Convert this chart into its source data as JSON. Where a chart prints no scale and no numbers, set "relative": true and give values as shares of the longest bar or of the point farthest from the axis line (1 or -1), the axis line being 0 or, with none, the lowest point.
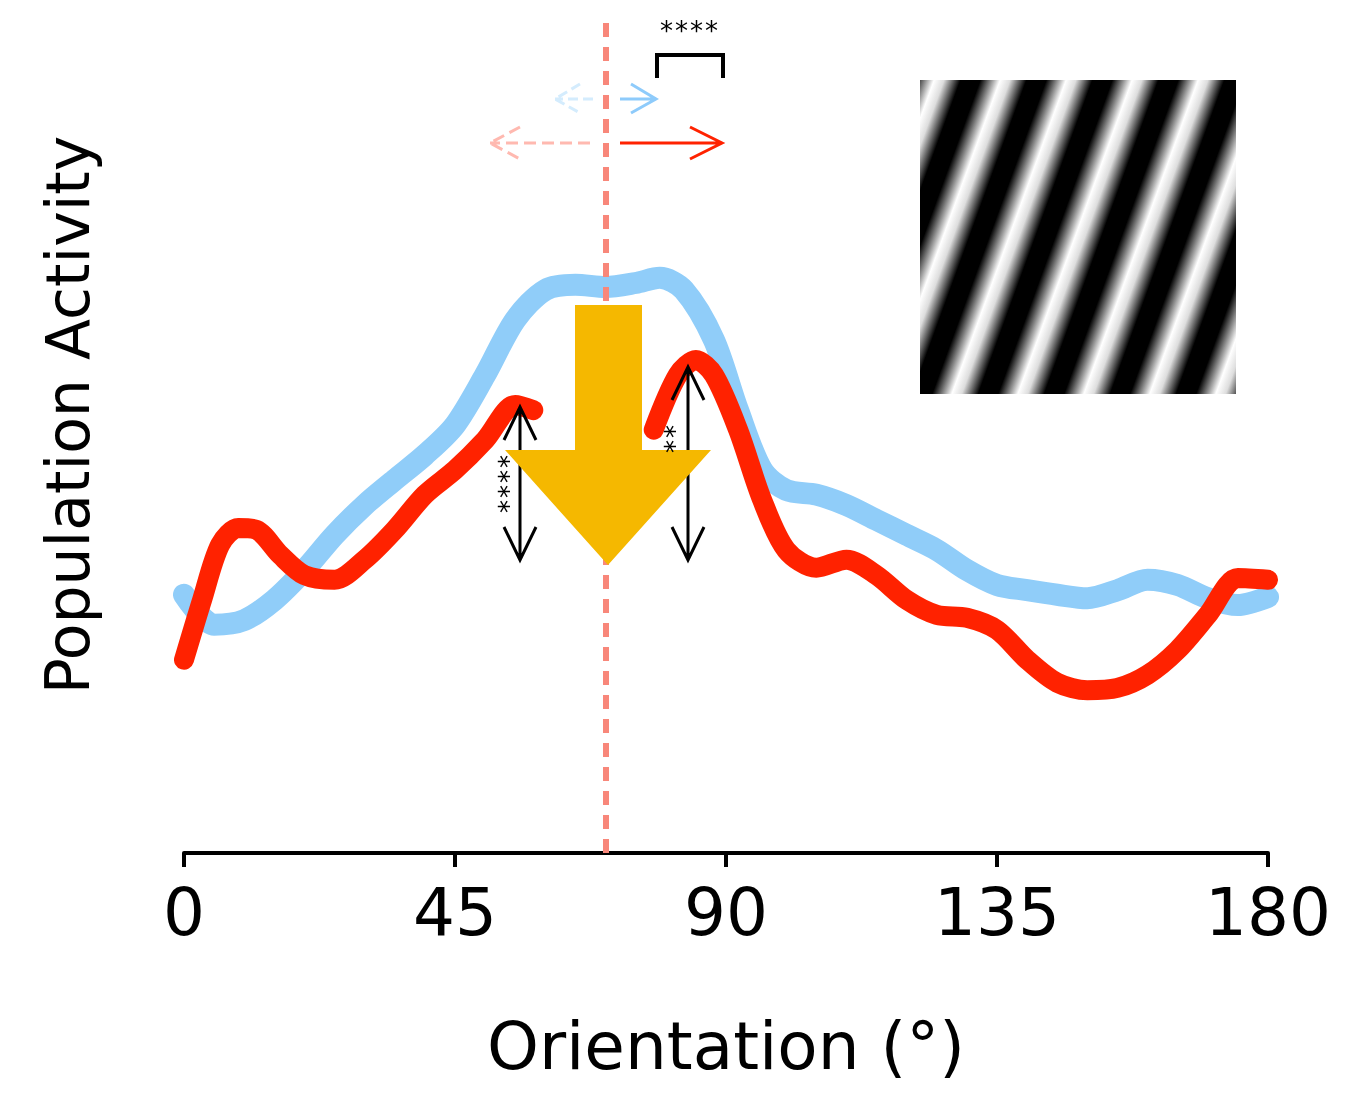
{
  "chart_data": {
    "type": "line",
    "relative": true,
    "xlabel": "Orientation (°)",
    "ylabel": "Population Activity",
    "xlim": [
      0,
      180
    ],
    "xticks": [
      0,
      45,
      90,
      135,
      180
    ],
    "grid": false,
    "line_style": "solid",
    "annotations": [
      "****",
      "****",
      "**"
    ],
    "ref_lines": [
      {
        "axis": "x",
        "value": 70,
        "label": null,
        "color": "#f8877a",
        "line_style": "dashed"
      }
    ],
    "series": [
      {
        "color": "#90cdf9",
        "x": [
          0,
          5,
          10,
          15,
          20,
          25,
          30,
          35,
          40,
          45,
          50,
          55,
          60,
          65,
          70,
          75,
          79,
          83,
          88,
          92,
          96,
          100,
          105,
          110,
          115,
          120,
          125,
          130,
          135,
          140,
          145,
          150,
          155,
          160,
          165,
          170,
          175,
          180
        ],
        "values": [
          0.449,
          0.397,
          0.405,
          0.44,
          0.492,
          0.553,
          0.605,
          0.649,
          0.692,
          0.744,
          0.831,
          0.927,
          0.979,
          0.988,
          0.984,
          0.991,
          1,
          0.979,
          0.892,
          0.77,
          0.666,
          0.631,
          0.623,
          0.605,
          0.579,
          0.553,
          0.527,
          0.492,
          0.466,
          0.457,
          0.449,
          0.443,
          0.457,
          0.475,
          0.466,
          0.443,
          0.431,
          0.445
        ]
      },
      {
        "color": "#ff2200",
        "x": [
          0,
          3,
          6,
          9,
          12,
          16,
          20,
          25,
          30,
          35,
          40,
          45,
          50,
          55,
          58,
          62,
          66,
          70,
          74,
          78,
          82,
          85,
          88,
          92,
          96,
          100,
          105,
          110,
          115,
          120,
          125,
          130,
          135,
          140,
          145,
          150,
          155,
          160,
          165,
          170,
          175,
          180
        ],
        "values": [
          0.336,
          0.44,
          0.536,
          0.565,
          0.562,
          0.518,
          0.483,
          0.475,
          0.51,
          0.562,
          0.623,
          0.666,
          0.718,
          0.779,
          0.77,
          null,
          null,
          null,
          null,
          0.736,
          0.831,
          0.857,
          0.831,
          0.736,
          0.614,
          0.527,
          0.496,
          0.51,
          0.483,
          0.44,
          0.414,
          0.409,
          0.388,
          0.336,
          0.296,
          0.283,
          0.287,
          0.31,
          0.353,
          0.414,
          0.478,
          0.475
        ]
      }
    ]
  }
}
